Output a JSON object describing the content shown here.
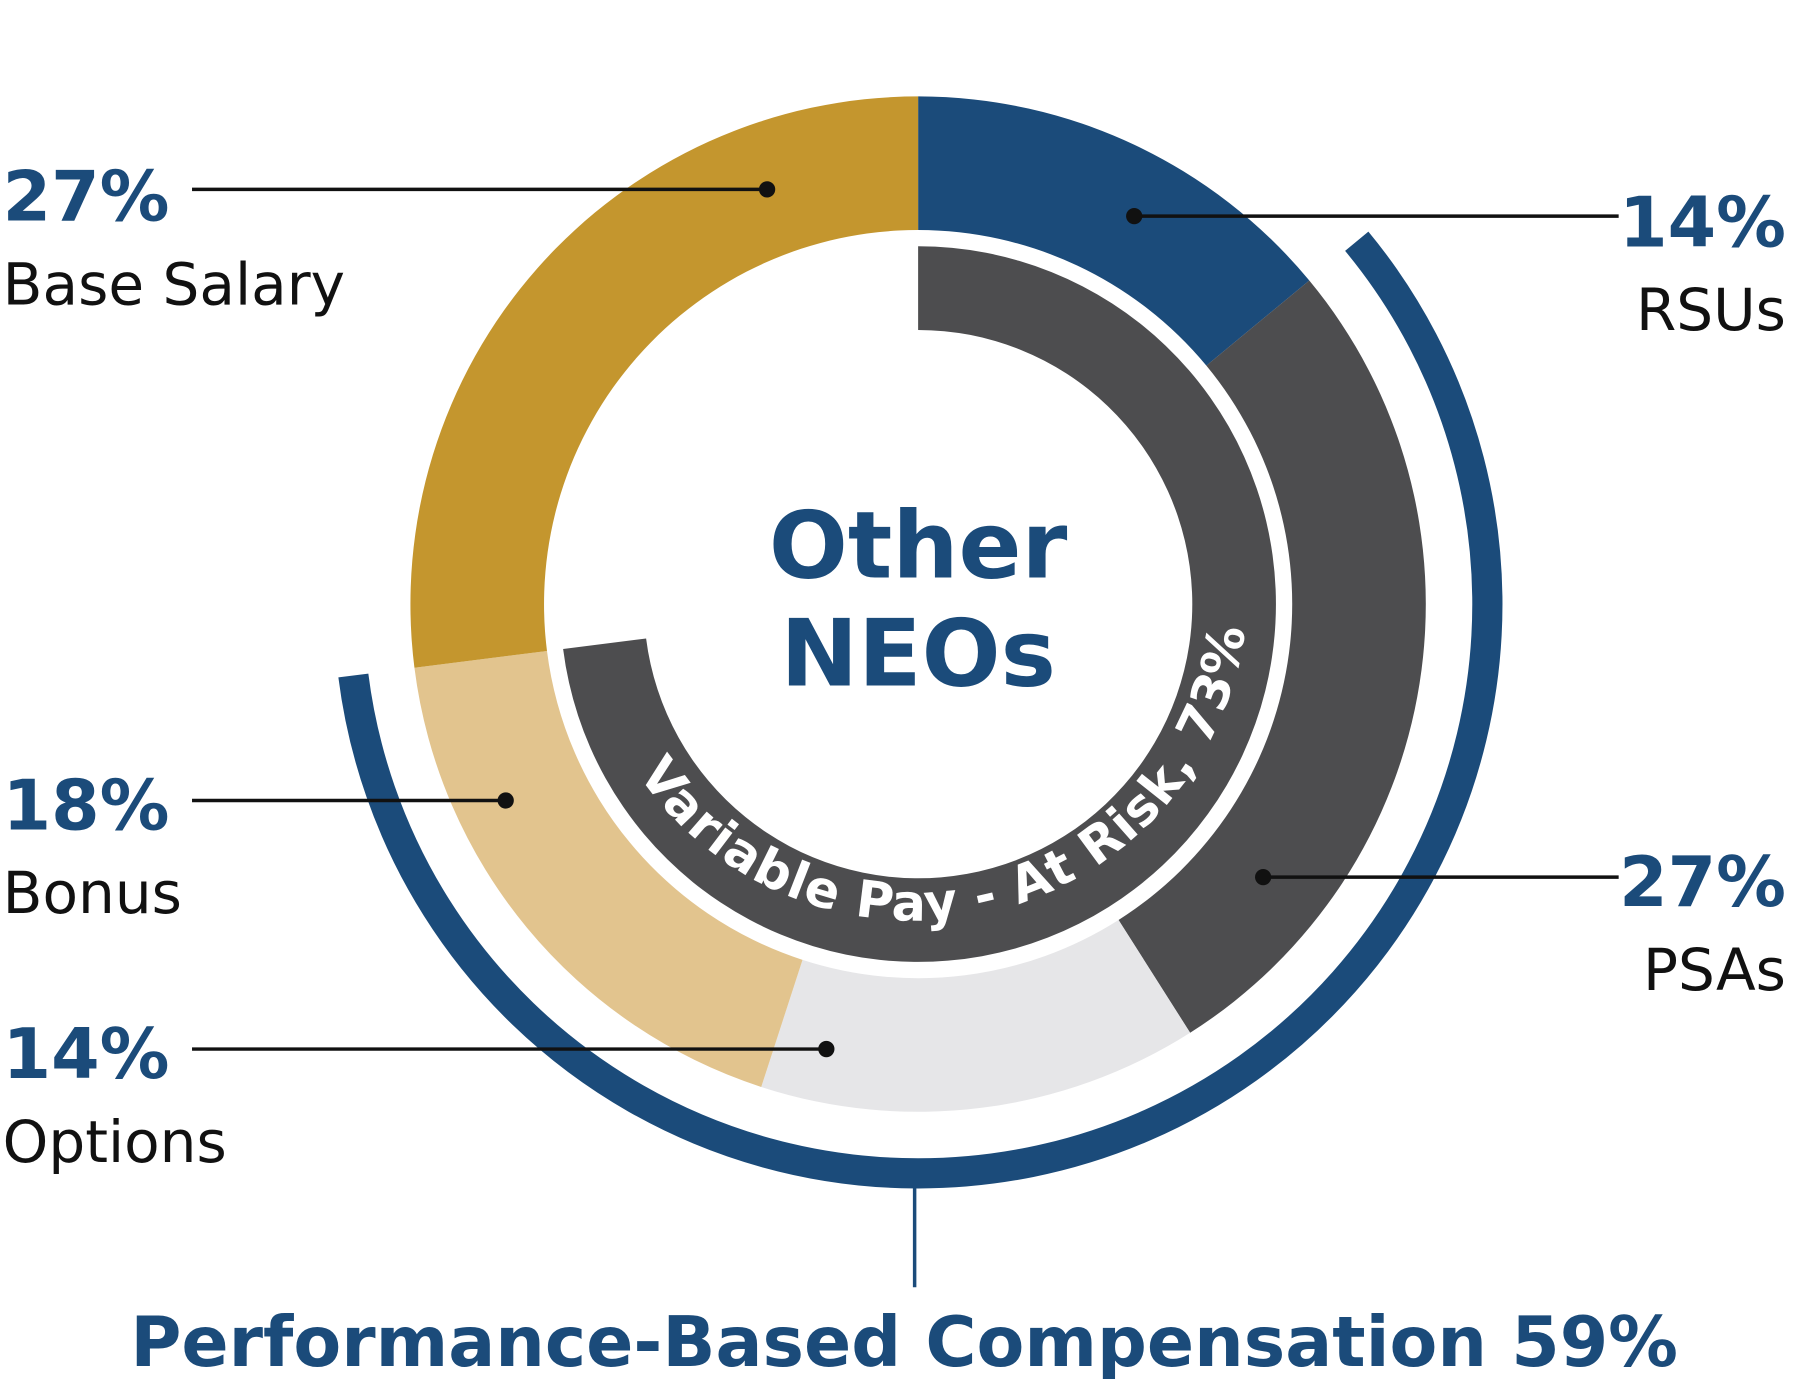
{
  "chart_data": {
    "type": "donut",
    "center_label": [
      "Other",
      "NEOs"
    ],
    "categories": [
      "RSUs",
      "PSAs",
      "Options",
      "Bonus",
      "Base Salary"
    ],
    "values": [
      14,
      27,
      14,
      18,
      27
    ],
    "value_labels": [
      "14%",
      "27%",
      "14%",
      "18%",
      "27%"
    ],
    "colors": [
      "#1b4b7a",
      "#4d4d4f",
      "#e6e6e8",
      "#e2c48e",
      "#c4962e"
    ],
    "bands": [
      {
        "label": "Variable Pay - At Risk, 73%",
        "value": 73,
        "color": "#4d4d4f"
      },
      {
        "label": "Performance-Based Compensation 59%",
        "value": 59,
        "color": "#1b4b7a"
      }
    ]
  }
}
